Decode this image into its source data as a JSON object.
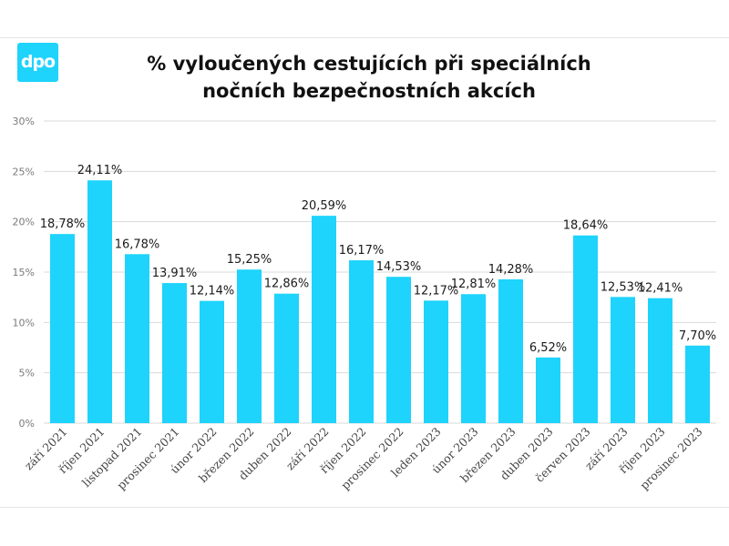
{
  "logo": {
    "text": "dpo",
    "color": "#1ed3fc"
  },
  "chart_data": {
    "type": "bar",
    "title": "% vyloučených cestujících při speciálních nočních bezpečnostních akcích",
    "title_lines": [
      "% vyloučených cestujících při speciálních",
      "nočních bezpečnostních akcích"
    ],
    "categories": [
      "září 2021",
      "říjen 2021",
      "listopad 2021",
      "prosinec 2021",
      "únor 2022",
      "březen 2022",
      "duben 2022",
      "září 2022",
      "říjen 2022",
      "prosinec 2022",
      "leden 2023",
      "únor 2023",
      "březen 2023",
      "duben 2023",
      "červen 2023",
      "září 2023",
      "říjen 2023",
      "prosinec 2023"
    ],
    "values": [
      18.78,
      24.11,
      16.78,
      13.91,
      12.14,
      15.25,
      12.86,
      20.59,
      16.17,
      14.53,
      12.17,
      12.81,
      14.28,
      6.52,
      18.64,
      12.53,
      12.41,
      7.7
    ],
    "value_labels": [
      "18,78%",
      "24,11%",
      "16,78%",
      "13,91%",
      "12,14%",
      "15,25%",
      "12,86%",
      "20,59%",
      "16,17%",
      "14,53%",
      "12,17%",
      "12,81%",
      "14,28%",
      "6,52%",
      "18,64%",
      "12,53%",
      "12,41%",
      "7,70%"
    ],
    "yticks": [
      0,
      5,
      10,
      15,
      20,
      25,
      30
    ],
    "ytick_labels": [
      "0%",
      "5%",
      "10%",
      "15%",
      "20%",
      "25%",
      "30%"
    ],
    "ylim": [
      0,
      30
    ],
    "xlabel": "",
    "ylabel": "",
    "grid": true,
    "legend": "none",
    "bar_color": "#1ed3fc",
    "grid_color": "#d9d9d9"
  }
}
